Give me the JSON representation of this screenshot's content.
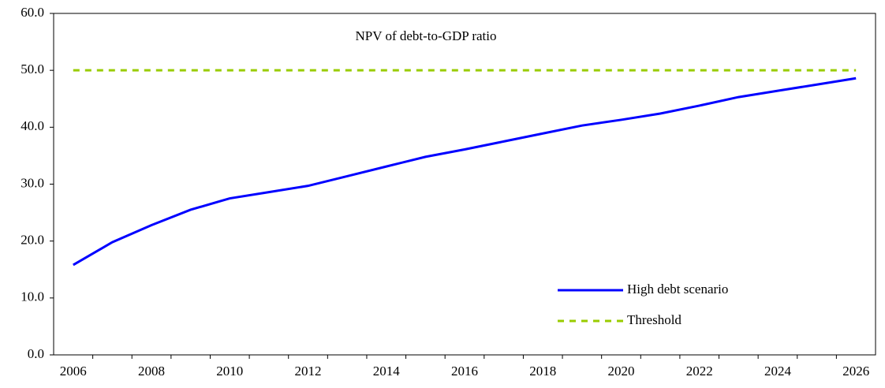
{
  "chart_data": {
    "type": "line",
    "title": "NPV of debt-to-GDP ratio",
    "categories": [
      "2006",
      null,
      "2008",
      null,
      "2010",
      null,
      "2012",
      null,
      "2014",
      null,
      "2016",
      null,
      "2018",
      null,
      "2020",
      null,
      "2022",
      null,
      "2024",
      null,
      "2026"
    ],
    "series": [
      {
        "name": "High debt scenario",
        "color": "#0000ff",
        "dash": false,
        "values": [
          15.8,
          19.8,
          22.8,
          25.5,
          27.5,
          28.6,
          29.7,
          31.4,
          33.1,
          34.8,
          36.1,
          37.5,
          38.9,
          40.3,
          41.3,
          42.4,
          43.8,
          45.3,
          46.4,
          47.5,
          48.6
        ]
      },
      {
        "name": "Threshold",
        "color": "#99cc00",
        "dash": true,
        "values": [
          50,
          50,
          50,
          50,
          50,
          50,
          50,
          50,
          50,
          50,
          50,
          50,
          50,
          50,
          50,
          50,
          50,
          50,
          50,
          50,
          50
        ]
      }
    ],
    "ylim": [
      0,
      60
    ],
    "yticks": [
      {
        "value": 0,
        "label": "0.0"
      },
      {
        "value": 10,
        "label": "10.0"
      },
      {
        "value": 20,
        "label": "20.0"
      },
      {
        "value": 30,
        "label": "30.0"
      },
      {
        "value": 40,
        "label": "40.0"
      },
      {
        "value": 50,
        "label": "50.0"
      },
      {
        "value": 60,
        "label": "60.0"
      }
    ],
    "grid": false
  }
}
